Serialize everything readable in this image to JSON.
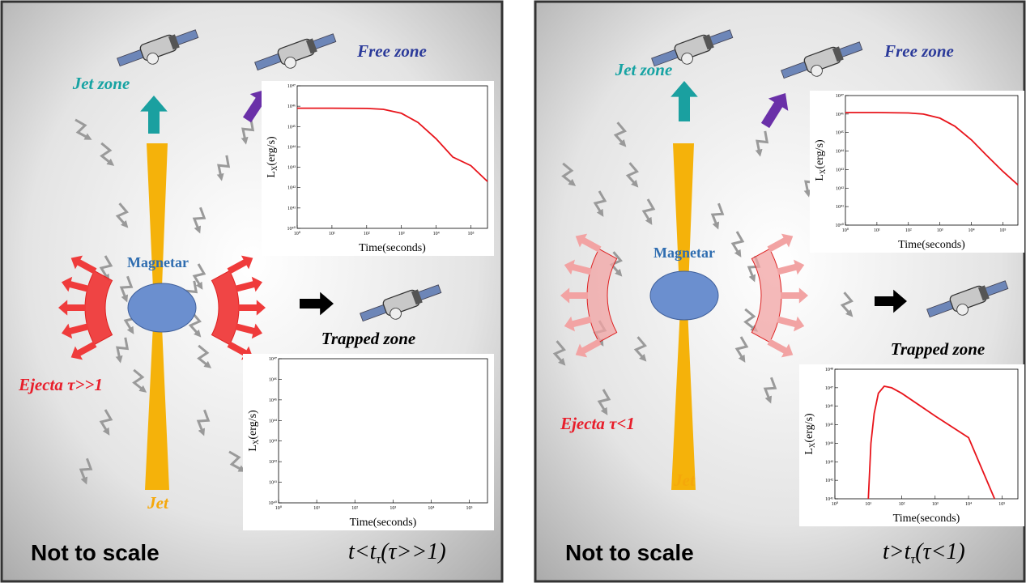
{
  "panels": [
    {
      "labels": {
        "free_zone": "Free zone",
        "jet_zone": "Jet zone",
        "magnetar": "Magnetar",
        "trapped_zone": "Trapped zone",
        "ejecta": "Ejecta τ>>1",
        "jet": "Jet",
        "note": "Not to scale"
      },
      "condition": {
        "main": "t<t",
        "sub": "τ",
        "rest": "(τ>>1)"
      },
      "charts": [
        {
          "type": "line",
          "log_scale": true,
          "y_label": {
            "main": "L",
            "sub": "X",
            "rest": "(erg/s)"
          },
          "x_label": "Time(seconds)",
          "xlim": [
            1,
            300000
          ],
          "xticks": [
            {
              "value": 1,
              "label": "10⁰"
            },
            {
              "value": 10,
              "label": "10¹"
            },
            {
              "value": 100,
              "label": "10²"
            },
            {
              "value": 1000,
              "label": "10³"
            },
            {
              "value": 10000,
              "label": "10⁴"
            },
            {
              "value": 100000,
              "label": "10⁵"
            }
          ],
          "ylim": [
            1e+40,
            1e+47
          ],
          "yticks": [
            {
              "value": 1e+40,
              "label": "10⁴⁰"
            },
            {
              "value": 1e+41,
              "label": "10⁴¹"
            },
            {
              "value": 1e+42,
              "label": "10⁴²"
            },
            {
              "value": 1e+43,
              "label": "10⁴³"
            },
            {
              "value": 1e+44,
              "label": "10⁴⁴"
            },
            {
              "value": 1e+45,
              "label": "10⁴⁵"
            },
            {
              "value": 1e+46,
              "label": "10⁴⁶"
            },
            {
              "value": 1e+47,
              "label": "10⁴⁷"
            }
          ],
          "series": [
            {
              "color": "#e8141b",
              "x": [
                1,
                10,
                100,
                300,
                1000,
                3000,
                10000,
                30000,
                100000,
                300000
              ],
              "values": [
                8e+45,
                8e+45,
                7.8e+45,
                7e+45,
                4.5e+45,
                1.6e+45,
                2.5e+44,
                3.2e+43,
                1.2e+43,
                2e+42
              ]
            }
          ]
        },
        {
          "type": "line",
          "log_scale": true,
          "y_label": {
            "main": "L",
            "sub": "X",
            "rest": "(erg/s)"
          },
          "x_label": "Time(seconds)",
          "xlim": [
            1,
            300000
          ],
          "xticks": [
            {
              "value": 1,
              "label": "10⁰"
            },
            {
              "value": 10,
              "label": "10¹"
            },
            {
              "value": 100,
              "label": "10²"
            },
            {
              "value": 1000,
              "label": "10³"
            },
            {
              "value": 10000,
              "label": "10⁴"
            },
            {
              "value": 100000,
              "label": "10⁵"
            }
          ],
          "ylim": [
            1e+40,
            1e+47
          ],
          "yticks": [
            {
              "value": 1e+40,
              "label": "10⁴⁰"
            },
            {
              "value": 1e+41,
              "label": "10⁴¹"
            },
            {
              "value": 1e+42,
              "label": "10⁴²"
            },
            {
              "value": 1e+43,
              "label": "10⁴³"
            },
            {
              "value": 1e+44,
              "label": "10⁴⁴"
            },
            {
              "value": 1e+45,
              "label": "10⁴⁵"
            },
            {
              "value": 1e+46,
              "label": "10⁴⁶"
            },
            {
              "value": 1e+47,
              "label": "10⁴⁷"
            }
          ],
          "series": []
        }
      ]
    },
    {
      "labels": {
        "free_zone": "Free zone",
        "jet_zone": "Jet zone",
        "magnetar": "Magnetar",
        "trapped_zone": "Trapped zone",
        "ejecta": "Ejecta τ<1",
        "jet": "Jet",
        "note": "Not to scale"
      },
      "condition": {
        "main": "t>t",
        "sub": "τ",
        "rest": "(τ<1)"
      },
      "charts": [
        {
          "type": "line",
          "log_scale": true,
          "y_label": {
            "main": "L",
            "sub": "X",
            "rest": "(erg/s)"
          },
          "x_label": "Time(seconds)",
          "xlim": [
            1,
            300000
          ],
          "xticks": [
            {
              "value": 1,
              "label": "10⁰"
            },
            {
              "value": 10,
              "label": "10¹"
            },
            {
              "value": 100,
              "label": "10²"
            },
            {
              "value": 1000,
              "label": "10³"
            },
            {
              "value": 10000,
              "label": "10⁴"
            },
            {
              "value": 100000,
              "label": "10⁵"
            }
          ],
          "ylim": [
            1e+40,
            1e+47
          ],
          "yticks": [
            {
              "value": 1e+40,
              "label": "10⁴⁰"
            },
            {
              "value": 1e+41,
              "label": "10⁴¹"
            },
            {
              "value": 1e+42,
              "label": "10⁴²"
            },
            {
              "value": 1e+43,
              "label": "10⁴³"
            },
            {
              "value": 1e+44,
              "label": "10⁴⁴"
            },
            {
              "value": 1e+45,
              "label": "10⁴⁵"
            },
            {
              "value": 1e+46,
              "label": "10⁴⁶"
            },
            {
              "value": 1e+47,
              "label": "10⁴⁷"
            }
          ],
          "series": [
            {
              "color": "#e8141b",
              "x": [
                1,
                10,
                100,
                300,
                1000,
                3000,
                10000,
                30000,
                100000,
                300000
              ],
              "values": [
                1.2e+46,
                1.2e+46,
                1.15e+46,
                1e+46,
                6e+45,
                2.2e+45,
                4e+44,
                6e+43,
                8e+42,
                1.5e+42
              ]
            }
          ]
        },
        {
          "type": "line",
          "log_scale": true,
          "y_label": {
            "main": "L",
            "sub": "X",
            "rest": "(erg/s)"
          },
          "x_label": "Time(seconds)",
          "xlim": [
            1,
            300000
          ],
          "xticks": [
            {
              "value": 1,
              "label": "10⁰"
            },
            {
              "value": 10,
              "label": "10¹"
            },
            {
              "value": 100,
              "label": "10²"
            },
            {
              "value": 1000,
              "label": "10³"
            },
            {
              "value": 10000,
              "label": "10⁴"
            },
            {
              "value": 100000,
              "label": "10⁵"
            }
          ],
          "ylim": [
            1e+41,
            1e+48
          ],
          "yticks": [
            {
              "value": 1e+41,
              "label": "10⁴¹"
            },
            {
              "value": 1e+42,
              "label": "10⁴²"
            },
            {
              "value": 1e+43,
              "label": "10⁴³"
            },
            {
              "value": 1e+44,
              "label": "10⁴⁴"
            },
            {
              "value": 1e+45,
              "label": "10⁴⁵"
            },
            {
              "value": 1e+46,
              "label": "10⁴⁶"
            },
            {
              "value": 1e+47,
              "label": "10⁴⁷"
            },
            {
              "value": 1e+48,
              "label": "10⁴⁸"
            }
          ],
          "series": [
            {
              "color": "#e8141b",
              "x": [
                10,
                12,
                15,
                20,
                30,
                50,
                100,
                1000,
                10000,
                60000
              ],
              "values": [
                1e+41,
                1e+44,
                4e+45,
                5e+46,
                1.2e+47,
                1e+47,
                5e+46,
                3e+45,
                2e+44,
                1e+41
              ]
            }
          ]
        }
      ]
    }
  ]
}
